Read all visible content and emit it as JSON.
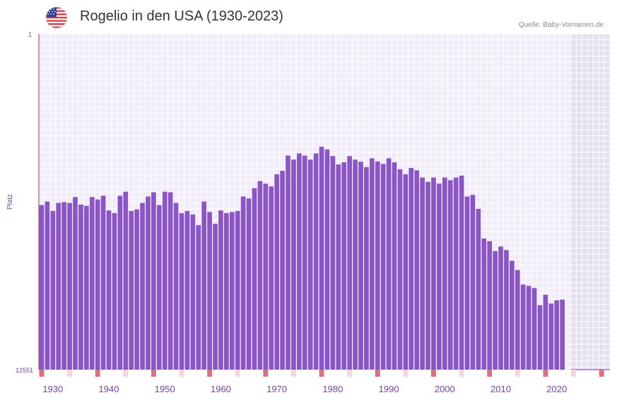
{
  "header": {
    "title": "Rogelio in den USA (1930-2023)",
    "source": "Quelle: Baby-Vornamen.de",
    "flag_icon": "us-flag-icon"
  },
  "colors": {
    "bar": "#8c55c7",
    "plot_bg": "#f1ecfa",
    "grid": "#ffffff",
    "future_bg": "#e5e0ef",
    "axis_line": "#9c3a4a",
    "tick_label": "#7a3fb0",
    "marker_strong": "#d9727a",
    "marker_light": "#f6d6d9"
  },
  "chart_data": {
    "type": "bar",
    "title": "Rogelio in den USA (1930-2023)",
    "ylabel": "Platz",
    "y_reversed": true,
    "ylim": [
      1,
      12551
    ],
    "y_tick_labels": [
      "1",
      "12551"
    ],
    "x_range": [
      1928,
      2029
    ],
    "x_tick_labels": [
      "1930",
      "1940",
      "1950",
      "1960",
      "1970",
      "1980",
      "1990",
      "2000",
      "2010",
      "2020"
    ],
    "x_tick_values": [
      1930,
      1940,
      1950,
      1960,
      1970,
      1980,
      1990,
      2000,
      2010,
      2020
    ],
    "future_shading_from": 2022.5,
    "years": [
      1928,
      1929,
      1930,
      1931,
      1932,
      1933,
      1934,
      1935,
      1936,
      1937,
      1938,
      1939,
      1940,
      1941,
      1942,
      1943,
      1944,
      1945,
      1946,
      1947,
      1948,
      1949,
      1950,
      1951,
      1952,
      1953,
      1954,
      1955,
      1956,
      1957,
      1958,
      1959,
      1960,
      1961,
      1962,
      1963,
      1964,
      1965,
      1966,
      1967,
      1968,
      1969,
      1970,
      1971,
      1972,
      1973,
      1974,
      1975,
      1976,
      1977,
      1978,
      1979,
      1980,
      1981,
      1982,
      1983,
      1984,
      1985,
      1986,
      1987,
      1988,
      1989,
      1990,
      1991,
      1992,
      1993,
      1994,
      1995,
      1996,
      1997,
      1998,
      1999,
      2000,
      2001,
      2002,
      2003,
      2004,
      2005,
      2006,
      2007,
      2008,
      2009,
      2010,
      2011,
      2012,
      2013,
      2014,
      2015,
      2016,
      2017,
      2018,
      2019,
      2020,
      2021,
      2022
    ],
    "ranks": [
      6400,
      6270,
      6620,
      6320,
      6290,
      6320,
      6100,
      6380,
      6430,
      6100,
      6190,
      6050,
      6600,
      6700,
      6050,
      5900,
      6620,
      6560,
      6320,
      6080,
      5920,
      6400,
      5900,
      5920,
      6320,
      6700,
      6620,
      6750,
      7150,
      6270,
      6660,
      7100,
      6600,
      6700,
      6660,
      6620,
      6080,
      6150,
      5770,
      5500,
      5600,
      5700,
      5250,
      5120,
      4550,
      4700,
      4470,
      4550,
      4700,
      4470,
      4220,
      4320,
      4570,
      4880,
      4800,
      4570,
      4700,
      4780,
      4980,
      4650,
      4770,
      4860,
      4650,
      4800,
      5060,
      5250,
      5010,
      5100,
      5370,
      5530,
      5370,
      5600,
      5370,
      5470,
      5370,
      5300,
      6080,
      6020,
      6540,
      7650,
      7750,
      8120,
      7950,
      8080,
      8480,
      8830,
      9370,
      9420,
      9500,
      10140,
      9750,
      10080,
      9960,
      9930,
      12551
    ],
    "marker_years": {
      "strong": [
        1928,
        1938,
        1948,
        1958,
        1968,
        1978,
        1988,
        1998,
        2008,
        2018,
        2028
      ],
      "light": [
        1933,
        1943,
        1953,
        1963,
        1973,
        1983,
        1993,
        2003,
        2013,
        2023
      ]
    }
  }
}
